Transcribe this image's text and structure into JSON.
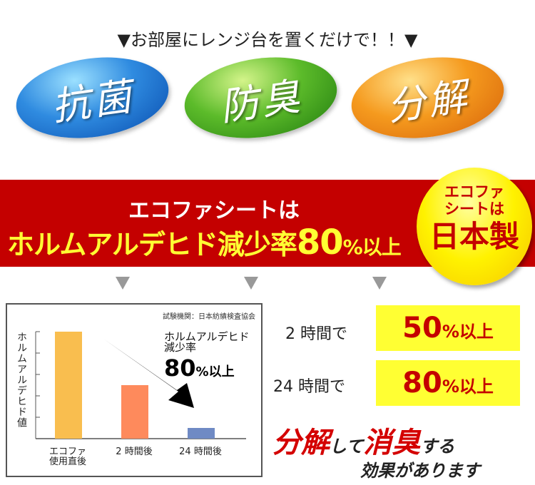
{
  "headline": "▼お部屋にレンジ台を置くだけで！！▼",
  "features": [
    "抗菌",
    "防臭",
    "分解"
  ],
  "banner": {
    "line1": "エコファシートは",
    "line2_prefix": "ホルムアルデヒド減少率",
    "line2_number": "80",
    "line2_suffix": "%以上"
  },
  "badge": {
    "line1": "エコファ",
    "line2": "シートは",
    "line3": "日本製"
  },
  "colors": {
    "banner": "#c40000",
    "highlight": "#ffff33",
    "bar1": "#f9be4f",
    "bar2": "#fe8a5c",
    "bar3": "#6f8ac4"
  },
  "chart_data": {
    "type": "bar",
    "source": "試験機関：日本紡績検査協会",
    "ylabel": "ホルムアルデヒド値",
    "categories": [
      "エコファ\n使用直後",
      "2 時間後",
      "24 時間後"
    ],
    "category_lines": [
      [
        "エコファ",
        "使用直後"
      ],
      [
        "2 時間後"
      ],
      [
        "24 時間後"
      ]
    ],
    "values": [
      100,
      50,
      10
    ],
    "ylim": [
      0,
      100
    ],
    "yticks_count": 6,
    "annotation": {
      "line1": "ホルムアルデヒド",
      "line2": "減少率",
      "number": "80",
      "suffix": "%以上"
    }
  },
  "results": [
    {
      "label": "2 時間で",
      "number": "50",
      "suffix": "%以上"
    },
    {
      "label": "24 時間で",
      "number": "80",
      "suffix": "%以上"
    }
  ],
  "slogan": {
    "p1": "分解",
    "p2": "して",
    "p3": "消臭",
    "p4": "する",
    "line2": "効果があります"
  }
}
